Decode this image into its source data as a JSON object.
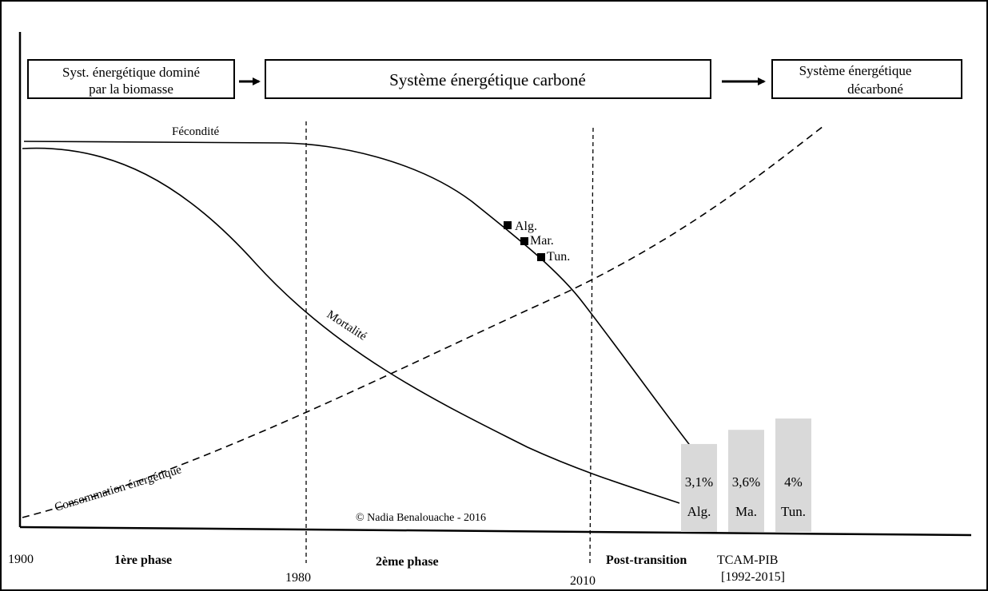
{
  "energy_systems": {
    "biomass_line1": "Syst. énergétique dominé",
    "biomass_line2": "par la biomasse",
    "carbon": "Système énergétique carboné",
    "decarbon_line1": "Système énergétique",
    "decarbon_line2": "décarboné"
  },
  "curves": {
    "fertility": "Fécondité",
    "mortality": "Mortalité",
    "energy_consumption": "Consommation énergétique"
  },
  "countries": {
    "algeria": "Alg.",
    "morocco": "Mar.",
    "tunisia": "Tun."
  },
  "bars": [
    {
      "value": "3,1%",
      "label": "Alg.",
      "level": 3.1
    },
    {
      "value": "3,6%",
      "label": "Ma.",
      "level": 3.6
    },
    {
      "value": "4%",
      "label": "Tun.",
      "level": 4.0
    }
  ],
  "copyright": "© Nadia Benalouache - 2016",
  "axis": {
    "year_1900": "1900",
    "year_1980": "1980",
    "year_2010": "2010"
  },
  "phases": {
    "phase1": "1ère phase",
    "phase2": "2ème phase",
    "post": "Post-transition"
  },
  "tcam": {
    "label": "TCAM-PIB",
    "period": "[1992-2015]"
  },
  "colors": {
    "bar_fill": "#d9d9d9",
    "line": "#000000",
    "background": "#ffffff"
  }
}
